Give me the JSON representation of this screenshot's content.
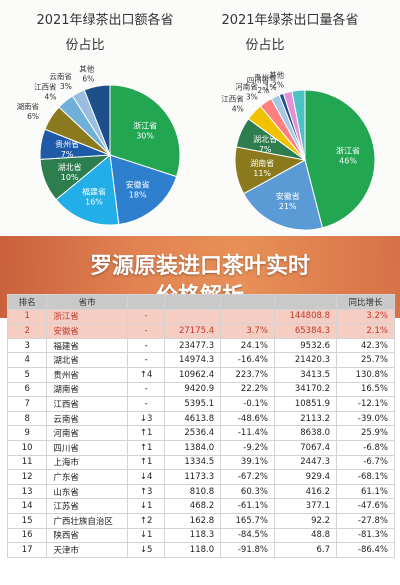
{
  "banner": {
    "line1": "罗源原装进口茶叶实时",
    "line2": "价格解析"
  },
  "chart_data": [
    {
      "type": "pie",
      "title_line1": "2021年绿茶出口额各省",
      "title_line2": "份占比",
      "slices": [
        {
          "name": "浙江省",
          "value": 30,
          "label": "30%",
          "color": "#22a652"
        },
        {
          "name": "安徽省",
          "value": 18,
          "label": "18%",
          "color": "#2f7fcf"
        },
        {
          "name": "福建省",
          "value": 16,
          "label": "16%",
          "color": "#22aee6"
        },
        {
          "name": "湖北省",
          "value": 10,
          "label": "10%",
          "color": "#2e7d4f"
        },
        {
          "name": "贵州省",
          "value": 7,
          "label": "7%",
          "color": "#1f5aa8"
        },
        {
          "name": "湖南省",
          "value": 6,
          "label": "6%",
          "color": "#8a7a1d"
        },
        {
          "name": "江西省",
          "value": 4,
          "label": "4%",
          "color": "#6fb0d8"
        },
        {
          "name": "云南省",
          "value": 3,
          "label": "3%",
          "color": "#9bbde0"
        },
        {
          "name": "其他",
          "value": 6,
          "label": "6%",
          "color": "#1f4f8a"
        }
      ]
    },
    {
      "type": "pie",
      "title_line1": "2021年绿茶出口量各省",
      "title_line2": "份占比",
      "slices": [
        {
          "name": "浙江省",
          "value": 46,
          "label": "46%",
          "color": "#22a652"
        },
        {
          "name": "安徽省",
          "value": 21,
          "label": "21%",
          "color": "#5b9bd5"
        },
        {
          "name": "湖南省",
          "value": 11,
          "label": "11%",
          "color": "#8a7a1d"
        },
        {
          "name": "湖北省",
          "value": 7,
          "label": "7%",
          "color": "#2e7d4f"
        },
        {
          "name": "江西省",
          "value": 4,
          "label": "4%",
          "color": "#f2c200"
        },
        {
          "name": "河南省",
          "value": 3,
          "label": "3%",
          "color": "#ff7f7f"
        },
        {
          "name": "四川省",
          "value": 2,
          "label": "2%",
          "color": "#a5c8e8"
        },
        {
          "name": "贵州省",
          "value": 1,
          "label": "1%",
          "color": "#1f4f8a"
        },
        {
          "name": "其他",
          "value": 2,
          "label": "2%",
          "color": "#e58fd9"
        },
        {
          "name": "",
          "value": 3,
          "label": "",
          "color": "#4cc2c4"
        }
      ]
    },
    {
      "type": "table",
      "columns": [
        "排名",
        "省市",
        "",
        "",
        "",
        "",
        "同比增长"
      ],
      "rows": [
        [
          "1",
          "浙江省",
          "-",
          "",
          "",
          "144808.8",
          "3.2%"
        ],
        [
          "2",
          "安徽省",
          "-",
          "27175.4",
          "3.7%",
          "65384.3",
          "2.1%"
        ],
        [
          "3",
          "福建省",
          "-",
          "23477.3",
          "24.1%",
          "9532.6",
          "42.3%"
        ],
        [
          "4",
          "湖北省",
          "-",
          "14974.3",
          "-16.4%",
          "21420.3",
          "25.7%"
        ],
        [
          "5",
          "贵州省",
          "↑4",
          "10962.4",
          "223.7%",
          "3413.5",
          "130.8%"
        ],
        [
          "6",
          "湖南省",
          "-",
          "9420.9",
          "22.2%",
          "34170.2",
          "16.5%"
        ],
        [
          "7",
          "江西省",
          "-",
          "5395.1",
          "-0.1%",
          "10851.9",
          "-12.1%"
        ],
        [
          "8",
          "云南省",
          "↓3",
          "4613.8",
          "-48.6%",
          "2113.2",
          "-39.0%"
        ],
        [
          "9",
          "河南省",
          "↑1",
          "2536.4",
          "-11.4%",
          "8638.0",
          "25.9%"
        ],
        [
          "10",
          "四川省",
          "↑1",
          "1384.0",
          "-9.2%",
          "7067.4",
          "-6.8%"
        ],
        [
          "11",
          "上海市",
          "↑1",
          "1334.5",
          "39.1%",
          "2447.3",
          "-6.7%"
        ],
        [
          "12",
          "广东省",
          "↓4",
          "1173.3",
          "-67.2%",
          "929.4",
          "-68.1%"
        ],
        [
          "13",
          "山东省",
          "↑3",
          "810.8",
          "60.3%",
          "416.2",
          "61.1%"
        ],
        [
          "14",
          "江苏省",
          "↓1",
          "468.2",
          "-61.1%",
          "377.1",
          "-47.6%"
        ],
        [
          "15",
          "广西壮族自治区",
          "↑2",
          "162.8",
          "165.7%",
          "92.2",
          "-27.8%"
        ],
        [
          "16",
          "陕西省",
          "↓1",
          "118.3",
          "-84.5%",
          "48.8",
          "-81.3%"
        ],
        [
          "17",
          "天津市",
          "↓5",
          "118.0",
          "-91.8%",
          "6.7",
          "-86.4%"
        ]
      ]
    }
  ]
}
